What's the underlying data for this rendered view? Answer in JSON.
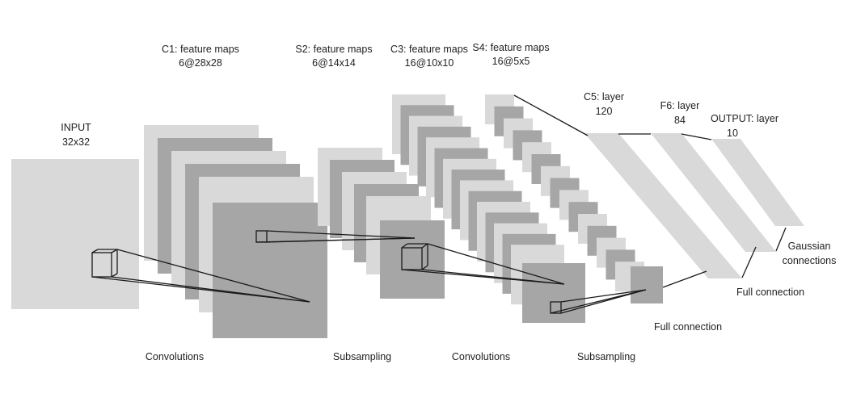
{
  "colors": {
    "light": "#d9d9d9",
    "dark": "#a6a6a6",
    "line": "#1a1a1a",
    "text": "#222222"
  },
  "layers": {
    "input": {
      "title": "INPUT",
      "size": "32x32"
    },
    "c1": {
      "title": "C1: feature maps",
      "size": "6@28x28"
    },
    "s2": {
      "title": "S2: feature maps",
      "size": "6@14x14"
    },
    "c3": {
      "title": "C3: feature maps",
      "size": "16@10x10"
    },
    "s4": {
      "title": "S4: feature maps",
      "size": "16@5x5"
    },
    "c5": {
      "title": "C5: layer",
      "size": "120"
    },
    "f6": {
      "title": "F6: layer",
      "size": "84"
    },
    "output": {
      "title": "OUTPUT: layer",
      "size": "10"
    }
  },
  "operations": {
    "convolutions_1": "Convolutions",
    "subsampling_1": "Subsampling",
    "convolutions_2": "Convolutions",
    "subsampling_2": "Subsampling",
    "full_connection_1": "Full connection",
    "full_connection_2": "Full connection",
    "gaussian_line1": "Gaussian",
    "gaussian_line2": "connections"
  }
}
